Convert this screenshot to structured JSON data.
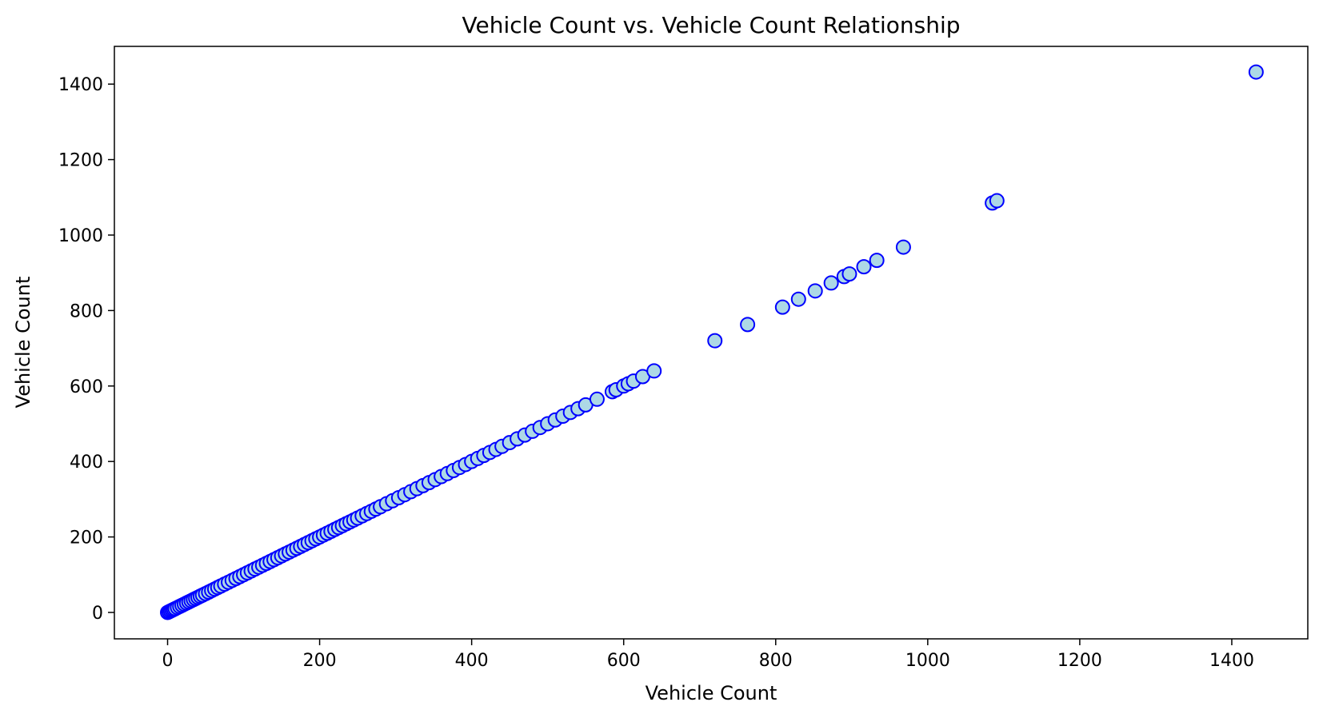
{
  "chart_data": {
    "type": "scatter",
    "title": "Vehicle Count vs. Vehicle Count Relationship",
    "xlabel": "Vehicle Count",
    "ylabel": "Vehicle Count",
    "xlim": [
      -70,
      1500
    ],
    "ylim": [
      -70,
      1500
    ],
    "xticks": [
      0,
      200,
      400,
      600,
      800,
      1000,
      1200,
      1400
    ],
    "yticks": [
      0,
      200,
      400,
      600,
      800,
      1000,
      1200,
      1400
    ],
    "grid": false,
    "marker_face": "#add8e6",
    "marker_edge": "#0000ff",
    "points": [
      [
        0,
        0
      ],
      [
        2,
        2
      ],
      [
        4,
        4
      ],
      [
        6,
        6
      ],
      [
        8,
        8
      ],
      [
        10,
        10
      ],
      [
        13,
        13
      ],
      [
        16,
        16
      ],
      [
        19,
        19
      ],
      [
        22,
        22
      ],
      [
        25,
        25
      ],
      [
        28,
        28
      ],
      [
        31,
        31
      ],
      [
        34,
        34
      ],
      [
        37,
        37
      ],
      [
        40,
        40
      ],
      [
        43,
        43
      ],
      [
        46,
        46
      ],
      [
        50,
        50
      ],
      [
        54,
        54
      ],
      [
        58,
        58
      ],
      [
        62,
        62
      ],
      [
        66,
        66
      ],
      [
        70,
        70
      ],
      [
        75,
        75
      ],
      [
        80,
        80
      ],
      [
        85,
        85
      ],
      [
        90,
        90
      ],
      [
        95,
        95
      ],
      [
        100,
        100
      ],
      [
        105,
        105
      ],
      [
        110,
        110
      ],
      [
        115,
        115
      ],
      [
        120,
        120
      ],
      [
        125,
        125
      ],
      [
        130,
        130
      ],
      [
        135,
        135
      ],
      [
        140,
        140
      ],
      [
        145,
        145
      ],
      [
        150,
        150
      ],
      [
        155,
        155
      ],
      [
        160,
        160
      ],
      [
        165,
        165
      ],
      [
        170,
        170
      ],
      [
        175,
        175
      ],
      [
        180,
        180
      ],
      [
        185,
        185
      ],
      [
        190,
        190
      ],
      [
        195,
        195
      ],
      [
        200,
        200
      ],
      [
        205,
        205
      ],
      [
        210,
        210
      ],
      [
        215,
        215
      ],
      [
        220,
        220
      ],
      [
        225,
        225
      ],
      [
        230,
        230
      ],
      [
        235,
        235
      ],
      [
        240,
        240
      ],
      [
        245,
        245
      ],
      [
        250,
        250
      ],
      [
        256,
        256
      ],
      [
        262,
        262
      ],
      [
        268,
        268
      ],
      [
        274,
        274
      ],
      [
        280,
        280
      ],
      [
        288,
        288
      ],
      [
        296,
        296
      ],
      [
        304,
        304
      ],
      [
        312,
        312
      ],
      [
        320,
        320
      ],
      [
        328,
        328
      ],
      [
        336,
        336
      ],
      [
        344,
        344
      ],
      [
        352,
        352
      ],
      [
        360,
        360
      ],
      [
        368,
        368
      ],
      [
        376,
        376
      ],
      [
        384,
        384
      ],
      [
        392,
        392
      ],
      [
        400,
        400
      ],
      [
        408,
        408
      ],
      [
        416,
        416
      ],
      [
        424,
        424
      ],
      [
        432,
        432
      ],
      [
        440,
        440
      ],
      [
        450,
        450
      ],
      [
        460,
        460
      ],
      [
        470,
        470
      ],
      [
        480,
        480
      ],
      [
        490,
        490
      ],
      [
        500,
        500
      ],
      [
        510,
        510
      ],
      [
        520,
        520
      ],
      [
        530,
        530
      ],
      [
        540,
        540
      ],
      [
        550,
        550
      ],
      [
        565,
        565
      ],
      [
        585,
        585
      ],
      [
        590,
        590
      ],
      [
        600,
        600
      ],
      [
        606,
        606
      ],
      [
        613,
        613
      ],
      [
        625,
        625
      ],
      [
        640,
        640
      ],
      [
        720,
        720
      ],
      [
        763,
        763
      ],
      [
        809,
        809
      ],
      [
        830,
        830
      ],
      [
        852,
        852
      ],
      [
        873,
        873
      ],
      [
        890,
        890
      ],
      [
        897,
        897
      ],
      [
        916,
        916
      ],
      [
        933,
        933
      ],
      [
        968,
        968
      ],
      [
        1085,
        1085
      ],
      [
        1091,
        1091
      ],
      [
        1432,
        1432
      ]
    ]
  }
}
